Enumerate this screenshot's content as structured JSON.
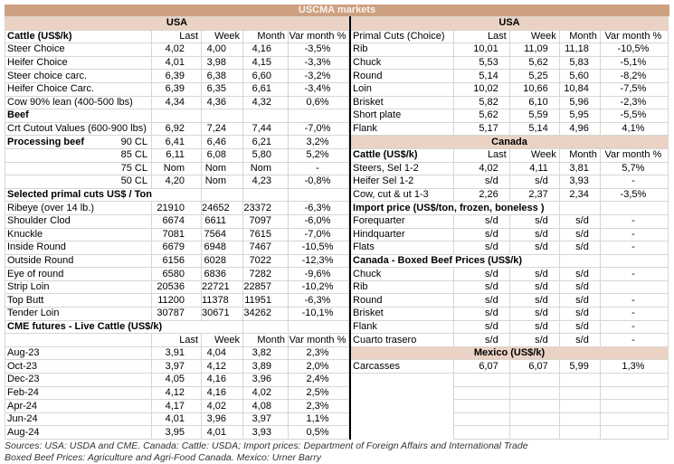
{
  "title": "USCMA markets",
  "colors": {
    "title_band": "#CDA082",
    "sub_band": "#EAD3C5",
    "grid": "#DAD5D0",
    "divider": "#000000"
  },
  "footer": {
    "line1": "Sources: USA: USDA and CME. Canada: Cattle: USDA; Import prices: Department of Foreign Affairs and International Trade",
    "line2": "Boxed Beef Prices: Agriculture and Agri-Food Canada. Mexico: Urner Barry"
  },
  "left_table": {
    "rows": [
      {
        "t": "band",
        "label": "USA"
      },
      {
        "t": "hdr",
        "label": "Cattle (US$/k)",
        "bold": true,
        "cols": [
          "Last",
          "Week",
          "Month",
          "Var month %"
        ]
      },
      {
        "t": "data",
        "label": "Steer Choice",
        "v": [
          "4,02",
          "4,00",
          "4,16",
          "-3,5%"
        ]
      },
      {
        "t": "data",
        "label": "Heifer Choice",
        "v": [
          "4,01",
          "3,98",
          "4,15",
          "-3,3%"
        ]
      },
      {
        "t": "data",
        "label": "Steer choice carc.",
        "v": [
          "6,39",
          "6,38",
          "6,60",
          "-3,2%"
        ]
      },
      {
        "t": "data",
        "label": "Heifer Choice Carc.",
        "v": [
          "6,39",
          "6,35",
          "6,61",
          "-3,4%"
        ]
      },
      {
        "t": "data",
        "label": "Cow 90% lean (400-500 lbs)",
        "v": [
          "4,34",
          "4,36",
          "4,32",
          "0,6%"
        ]
      },
      {
        "t": "sect",
        "label": "Beef",
        "span": 1
      },
      {
        "t": "data",
        "label": "Crt Cutout Values (600-900 lbs)",
        "v": [
          "6,92",
          "7,24",
          "7,44",
          "-7,0%"
        ]
      },
      {
        "t": "data",
        "label": "Processing beef",
        "sub": "90 CL",
        "bold": true,
        "v": [
          "6,41",
          "6,46",
          "6,21",
          "3,2%"
        ]
      },
      {
        "t": "data",
        "label": "",
        "sub": "85 CL",
        "v": [
          "6,11",
          "6,08",
          "5,80",
          "5,2%"
        ]
      },
      {
        "t": "data",
        "label": "",
        "sub": "75 CL",
        "v": [
          "Nom",
          "Nom",
          "Nom",
          "-"
        ]
      },
      {
        "t": "data",
        "label": "",
        "sub": "50 CL",
        "v": [
          "4,20",
          "Nom",
          "4,23",
          "-0,8%"
        ]
      },
      {
        "t": "sect",
        "label": "Selected primal cuts US$ / Ton",
        "span": 2
      },
      {
        "t": "data",
        "label": "Ribeye (over 14 lb.)",
        "v": [
          "21910",
          "24652",
          "23372",
          "-6,3%"
        ]
      },
      {
        "t": "data",
        "label": "Shoulder Clod",
        "v": [
          "6674",
          "6611",
          "7097",
          "-6,0%"
        ]
      },
      {
        "t": "data",
        "label": "Knuckle",
        "v": [
          "7081",
          "7564",
          "7615",
          "-7,0%"
        ]
      },
      {
        "t": "data",
        "label": "Inside Round",
        "v": [
          "6679",
          "6948",
          "7467",
          "-10,5%"
        ]
      },
      {
        "t": "data",
        "label": "Outside Round",
        "v": [
          "6156",
          "6028",
          "7022",
          "-12,3%"
        ]
      },
      {
        "t": "data",
        "label": "Eye of round",
        "v": [
          "6580",
          "6836",
          "7282",
          "-9,6%"
        ]
      },
      {
        "t": "data",
        "label": "Strip Loin",
        "v": [
          "20536",
          "22721",
          "22857",
          "-10,2%"
        ]
      },
      {
        "t": "data",
        "label": "Top Butt",
        "v": [
          "11200",
          "11378",
          "11951",
          "-6,3%"
        ]
      },
      {
        "t": "data",
        "label": "Tender Loin",
        "v": [
          "30787",
          "30671",
          "34262",
          "-10,1%"
        ]
      },
      {
        "t": "sect",
        "label": "CME futures - Live Cattle (US$/k)",
        "span": 3
      },
      {
        "t": "subhdr",
        "cols": [
          "Last",
          "Week",
          "Month",
          "Var month %"
        ]
      },
      {
        "t": "data",
        "label": "Aug-23",
        "v": [
          "3,91",
          "4,04",
          "3,82",
          "2,3%"
        ]
      },
      {
        "t": "data",
        "label": "Oct-23",
        "v": [
          "3,97",
          "4,12",
          "3,89",
          "2,0%"
        ]
      },
      {
        "t": "data",
        "label": "Dec-23",
        "v": [
          "4,05",
          "4,16",
          "3,96",
          "2,4%"
        ]
      },
      {
        "t": "data",
        "label": "Feb-24",
        "v": [
          "4,12",
          "4,16",
          "4,02",
          "2,5%"
        ]
      },
      {
        "t": "data",
        "label": "Apr-24",
        "v": [
          "4,17",
          "4,02",
          "4,08",
          "2,3%"
        ]
      },
      {
        "t": "data",
        "label": "Jun-24",
        "v": [
          "4,01",
          "3,96",
          "3,97",
          "1,1%"
        ]
      },
      {
        "t": "data",
        "label": "Aug-24",
        "v": [
          "3,95",
          "4,01",
          "3,93",
          "0,5%"
        ]
      }
    ]
  },
  "right_table": {
    "rows": [
      {
        "t": "band",
        "label": "USA"
      },
      {
        "t": "hdr",
        "label": "Primal Cuts (Choice)",
        "bold": false,
        "cols": [
          "Last",
          "Week",
          "Month",
          "Var month %"
        ]
      },
      {
        "t": "data",
        "label": "Rib",
        "v": [
          "10,01",
          "11,09",
          "11,18",
          "-10,5%"
        ]
      },
      {
        "t": "data",
        "label": "Chuck",
        "v": [
          "5,53",
          "5,62",
          "5,83",
          "-5,1%"
        ]
      },
      {
        "t": "data",
        "label": "Round",
        "v": [
          "5,14",
          "5,25",
          "5,60",
          "-8,2%"
        ]
      },
      {
        "t": "data",
        "label": "Loin",
        "v": [
          "10,02",
          "10,66",
          "10,84",
          "-7,5%"
        ]
      },
      {
        "t": "data",
        "label": "Brisket",
        "v": [
          "5,82",
          "6,10",
          "5,96",
          "-2,3%"
        ]
      },
      {
        "t": "data",
        "label": "Short plate",
        "v": [
          "5,62",
          "5,59",
          "5,95",
          "-5,5%"
        ]
      },
      {
        "t": "data",
        "label": "Flank",
        "v": [
          "5,17",
          "5,14",
          "4,96",
          "4,1%"
        ]
      },
      {
        "t": "band",
        "label": "Canada"
      },
      {
        "t": "hdr",
        "label": "Cattle (US$/k)",
        "bold": true,
        "cols": [
          "Last",
          "Week",
          "Month",
          "Var month %"
        ]
      },
      {
        "t": "data",
        "label": "Steers, Sel 1-2",
        "v": [
          "4,02",
          "4,11",
          "3,81",
          "5,7%"
        ]
      },
      {
        "t": "data",
        "label": "Heifer Sel 1-2",
        "v": [
          "s/d",
          "s/d",
          "3,93",
          "-"
        ]
      },
      {
        "t": "data",
        "label": "Cow, cut & ut 1-3",
        "v": [
          "2,26",
          "2,37",
          "2,34",
          "-3,5%"
        ]
      },
      {
        "t": "sect",
        "label": "Import price (US$/ton, frozen, boneless )",
        "span": 3
      },
      {
        "t": "data",
        "label": "Forequarter",
        "v": [
          "s/d",
          "s/d",
          "s/d",
          "-"
        ]
      },
      {
        "t": "data",
        "label": "Hindquarter",
        "v": [
          "s/d",
          "s/d",
          "s/d",
          "-"
        ]
      },
      {
        "t": "data",
        "label": "Flats",
        "v": [
          "s/d",
          "s/d",
          "s/d",
          "-"
        ]
      },
      {
        "t": "sect",
        "label": "Canada - Boxed Beef Prices (US$/k)",
        "span": 3
      },
      {
        "t": "data",
        "label": "Chuck",
        "v": [
          "s/d",
          "s/d",
          "s/d",
          "-"
        ]
      },
      {
        "t": "data",
        "label": "Rib",
        "v": [
          "s/d",
          "s/d",
          "s/d",
          ""
        ]
      },
      {
        "t": "data",
        "label": "Round",
        "v": [
          "s/d",
          "s/d",
          "s/d",
          "-"
        ]
      },
      {
        "t": "data",
        "label": "Brisket",
        "v": [
          "s/d",
          "s/d",
          "s/d",
          "-"
        ]
      },
      {
        "t": "data",
        "label": "Flank",
        "v": [
          "s/d",
          "s/d",
          "s/d",
          "-"
        ]
      },
      {
        "t": "data",
        "label": "Cuarto trasero",
        "v": [
          "s/d",
          "s/d",
          "s/d",
          "-"
        ]
      },
      {
        "t": "band",
        "label": "Mexico (US$/k)"
      },
      {
        "t": "data",
        "label": "Carcasses",
        "v": [
          "6,07",
          "6,07",
          "5,99",
          "1,3%"
        ]
      },
      {
        "t": "empty"
      },
      {
        "t": "empty"
      },
      {
        "t": "empty"
      },
      {
        "t": "empty"
      },
      {
        "t": "empty"
      }
    ]
  }
}
